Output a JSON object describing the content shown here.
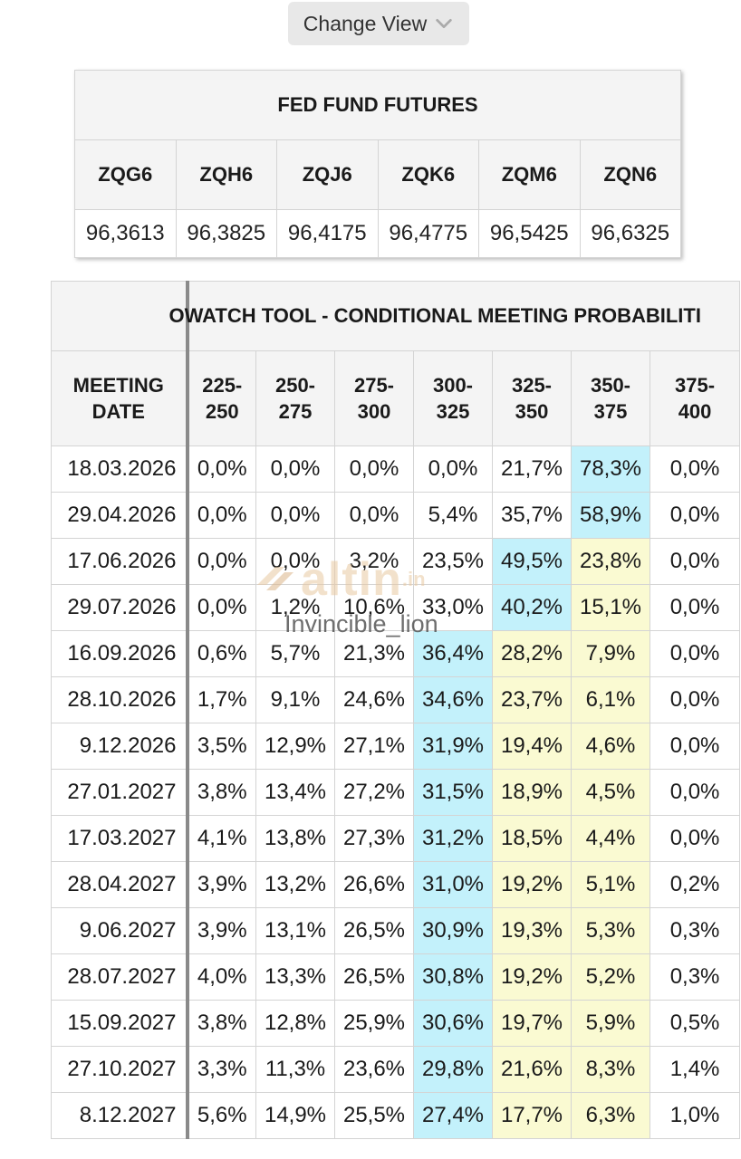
{
  "change_view": {
    "label": "Change View",
    "icon": "chevron-down-icon"
  },
  "fed_fund_futures": {
    "title": "FED FUND FUTURES",
    "columns": [
      {
        "code": "ZQG6",
        "value": "96,3613"
      },
      {
        "code": "ZQH6",
        "value": "96,3825"
      },
      {
        "code": "ZQJ6",
        "value": "96,4175"
      },
      {
        "code": "ZQK6",
        "value": "96,4775"
      },
      {
        "code": "ZQM6",
        "value": "96,5425"
      },
      {
        "code": "ZQN6",
        "value": "96,6325"
      }
    ]
  },
  "fedwatch": {
    "title": "OWATCH TOOL - CONDITIONAL MEETING PROBABILITI",
    "date_header": "MEETING DATE",
    "ranges": [
      "225-250",
      "250-275",
      "275-300",
      "300-325",
      "325-350",
      "350-375",
      "375-400"
    ],
    "highlight_colors": {
      "blue": "#c3f1fb",
      "yellow": "#fafad2"
    },
    "rows": [
      {
        "date": "18.03.2026",
        "values": [
          "0,0%",
          "0,0%",
          "0,0%",
          "0,0%",
          "21,7%",
          "78,3%",
          "0,0%"
        ],
        "hl": [
          "",
          "",
          "",
          "",
          "",
          "blue",
          ""
        ]
      },
      {
        "date": "29.04.2026",
        "values": [
          "0,0%",
          "0,0%",
          "0,0%",
          "5,4%",
          "35,7%",
          "58,9%",
          "0,0%"
        ],
        "hl": [
          "",
          "",
          "",
          "",
          "",
          "blue",
          ""
        ]
      },
      {
        "date": "17.06.2026",
        "values": [
          "0,0%",
          "0,0%",
          "3,2%",
          "23,5%",
          "49,5%",
          "23,8%",
          "0,0%"
        ],
        "hl": [
          "",
          "",
          "",
          "",
          "blue",
          "yellow",
          ""
        ]
      },
      {
        "date": "29.07.2026",
        "values": [
          "0,0%",
          "1,2%",
          "10,6%",
          "33,0%",
          "40,2%",
          "15,1%",
          "0,0%"
        ],
        "hl": [
          "",
          "",
          "",
          "",
          "blue",
          "yellow",
          ""
        ]
      },
      {
        "date": "16.09.2026",
        "values": [
          "0,6%",
          "5,7%",
          "21,3%",
          "36,4%",
          "28,2%",
          "7,9%",
          "0,0%"
        ],
        "hl": [
          "",
          "",
          "",
          "blue",
          "yellow",
          "yellow",
          ""
        ]
      },
      {
        "date": "28.10.2026",
        "values": [
          "1,7%",
          "9,1%",
          "24,6%",
          "34,6%",
          "23,7%",
          "6,1%",
          "0,0%"
        ],
        "hl": [
          "",
          "",
          "",
          "blue",
          "yellow",
          "yellow",
          ""
        ]
      },
      {
        "date": "9.12.2026",
        "values": [
          "3,5%",
          "12,9%",
          "27,1%",
          "31,9%",
          "19,4%",
          "4,6%",
          "0,0%"
        ],
        "hl": [
          "",
          "",
          "",
          "blue",
          "yellow",
          "yellow",
          ""
        ]
      },
      {
        "date": "27.01.2027",
        "values": [
          "3,8%",
          "13,4%",
          "27,2%",
          "31,5%",
          "18,9%",
          "4,5%",
          "0,0%"
        ],
        "hl": [
          "",
          "",
          "",
          "blue",
          "yellow",
          "yellow",
          ""
        ]
      },
      {
        "date": "17.03.2027",
        "values": [
          "4,1%",
          "13,8%",
          "27,3%",
          "31,2%",
          "18,5%",
          "4,4%",
          "0,0%"
        ],
        "hl": [
          "",
          "",
          "",
          "blue",
          "yellow",
          "yellow",
          ""
        ]
      },
      {
        "date": "28.04.2027",
        "values": [
          "3,9%",
          "13,2%",
          "26,6%",
          "31,0%",
          "19,2%",
          "5,1%",
          "0,2%"
        ],
        "hl": [
          "",
          "",
          "",
          "blue",
          "yellow",
          "yellow",
          ""
        ]
      },
      {
        "date": "9.06.2027",
        "values": [
          "3,9%",
          "13,1%",
          "26,5%",
          "30,9%",
          "19,3%",
          "5,3%",
          "0,3%"
        ],
        "hl": [
          "",
          "",
          "",
          "blue",
          "yellow",
          "yellow",
          ""
        ]
      },
      {
        "date": "28.07.2027",
        "values": [
          "4,0%",
          "13,3%",
          "26,5%",
          "30,8%",
          "19,2%",
          "5,2%",
          "0,3%"
        ],
        "hl": [
          "",
          "",
          "",
          "blue",
          "yellow",
          "yellow",
          ""
        ]
      },
      {
        "date": "15.09.2027",
        "values": [
          "3,8%",
          "12,8%",
          "25,9%",
          "30,6%",
          "19,7%",
          "5,9%",
          "0,5%"
        ],
        "hl": [
          "",
          "",
          "",
          "blue",
          "yellow",
          "yellow",
          ""
        ]
      },
      {
        "date": "27.10.2027",
        "values": [
          "3,3%",
          "11,3%",
          "23,6%",
          "29,8%",
          "21,6%",
          "8,3%",
          "1,4%"
        ],
        "hl": [
          "",
          "",
          "",
          "blue",
          "yellow",
          "yellow",
          ""
        ]
      },
      {
        "date": "8.12.2027",
        "values": [
          "5,6%",
          "14,9%",
          "25,5%",
          "27,4%",
          "17,7%",
          "6,3%",
          "1,0%"
        ],
        "hl": [
          "",
          "",
          "",
          "blue",
          "yellow",
          "yellow",
          ""
        ]
      }
    ]
  },
  "watermark": {
    "brand": "altin",
    "brand_suffix": ".in",
    "user": "Invincible_lion"
  }
}
